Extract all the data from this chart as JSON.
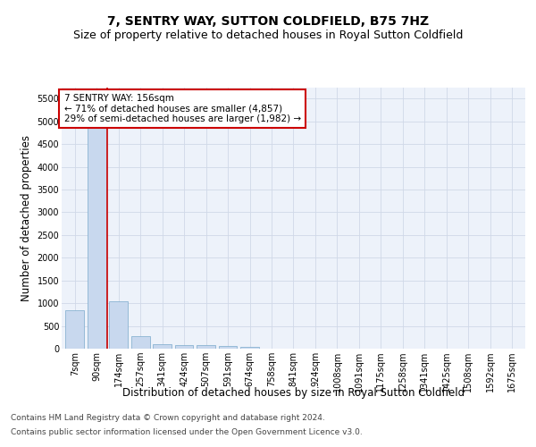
{
  "title": "7, SENTRY WAY, SUTTON COLDFIELD, B75 7HZ",
  "subtitle": "Size of property relative to detached houses in Royal Sutton Coldfield",
  "xlabel": "Distribution of detached houses by size in Royal Sutton Coldfield",
  "ylabel": "Number of detached properties",
  "footer_line1": "Contains HM Land Registry data © Crown copyright and database right 2024.",
  "footer_line2": "Contains public sector information licensed under the Open Government Licence v3.0.",
  "annotation_line1": "7 SENTRY WAY: 156sqm",
  "annotation_line2": "← 71% of detached houses are smaller (4,857)",
  "annotation_line3": "29% of semi-detached houses are larger (1,982) →",
  "bar_labels": [
    "7sqm",
    "90sqm",
    "174sqm",
    "257sqm",
    "341sqm",
    "424sqm",
    "507sqm",
    "591sqm",
    "674sqm",
    "758sqm",
    "841sqm",
    "924sqm",
    "1008sqm",
    "1091sqm",
    "1175sqm",
    "1258sqm",
    "1341sqm",
    "1425sqm",
    "1508sqm",
    "1592sqm",
    "1675sqm"
  ],
  "bar_values": [
    850,
    4857,
    1050,
    280,
    90,
    75,
    75,
    50,
    45,
    0,
    0,
    0,
    0,
    0,
    0,
    0,
    0,
    0,
    0,
    0,
    0
  ],
  "bar_color": "#c8d8ee",
  "bar_edge_color": "#7aaacc",
  "red_line_color": "#cc0000",
  "red_line_x": 1.5,
  "ylim": [
    0,
    5750
  ],
  "yticks": [
    0,
    500,
    1000,
    1500,
    2000,
    2500,
    3000,
    3500,
    4000,
    4500,
    5000,
    5500
  ],
  "grid_color": "#d0d8e8",
  "bg_color": "#edf2fa",
  "annotation_box_color": "#ffffff",
  "annotation_box_edge": "#cc0000",
  "title_fontsize": 10,
  "subtitle_fontsize": 9,
  "axis_label_fontsize": 8.5,
  "tick_fontsize": 7,
  "annotation_fontsize": 7.5,
  "footer_fontsize": 6.5
}
